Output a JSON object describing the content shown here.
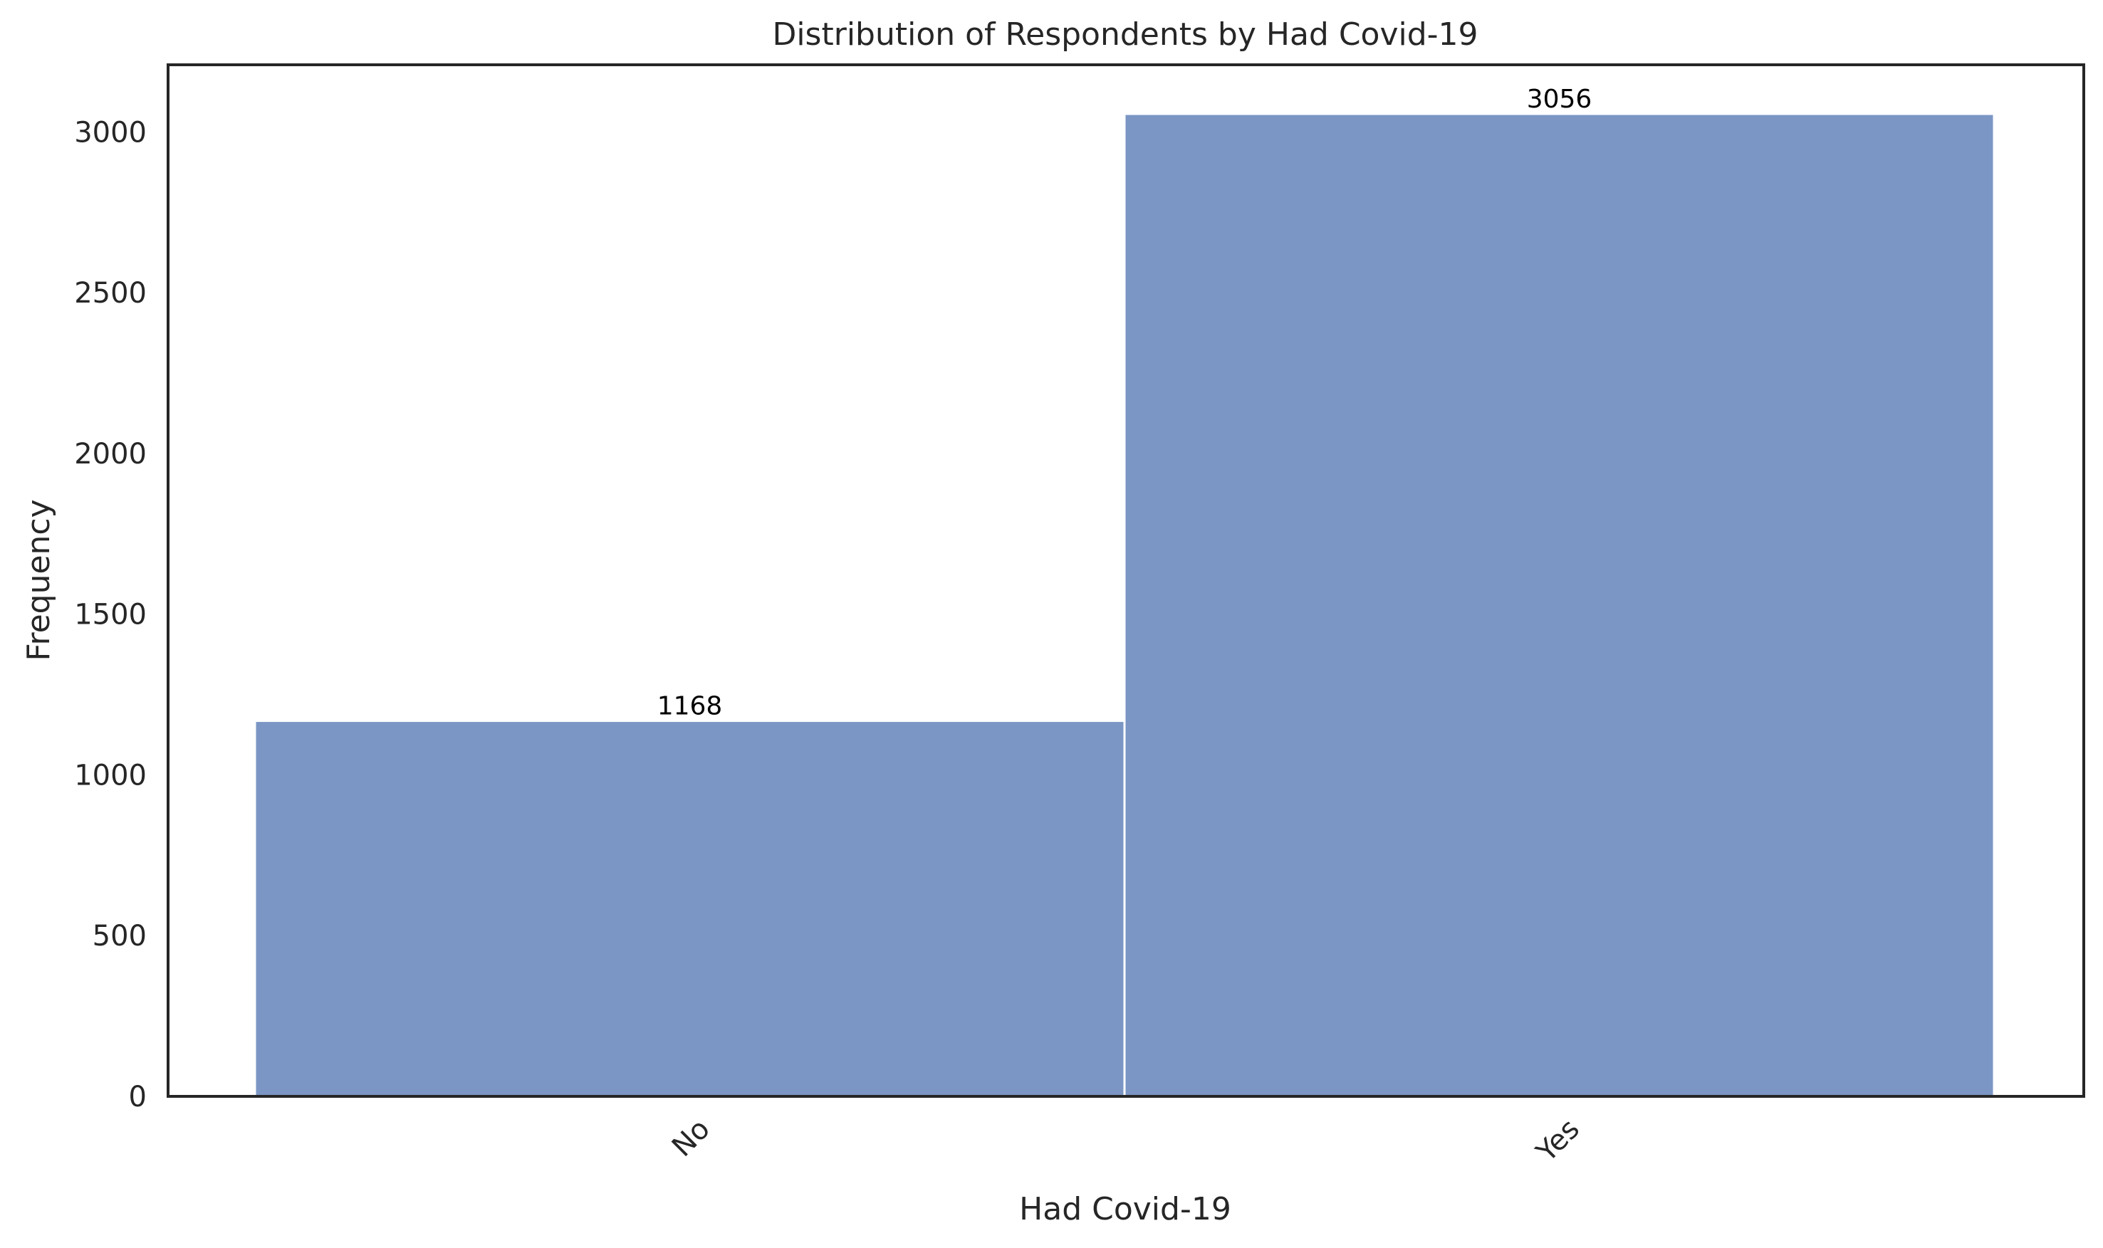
{
  "chart_data": {
    "type": "bar",
    "title": "Distribution of Respondents by Had Covid-19",
    "xlabel": "Had Covid-19",
    "ylabel": "Frequency",
    "categories": [
      "No",
      "Yes"
    ],
    "values": [
      1168,
      3056
    ],
    "data_labels": [
      "1168",
      "3056"
    ],
    "yticks": [
      0,
      500,
      1000,
      1500,
      2000,
      2500,
      3000
    ],
    "ytick_labels": [
      "0",
      "500",
      "1000",
      "1500",
      "2000",
      "2500",
      "3000"
    ],
    "ylim": [
      0,
      3208.8
    ],
    "x_tick_rotation_deg": 45,
    "grid": false,
    "legend": "none",
    "colors": {
      "bar": "#7b96c4",
      "bar_edge": "#ffffff",
      "axes": "#262626",
      "text": "#262626",
      "data_label": "#000000"
    }
  }
}
